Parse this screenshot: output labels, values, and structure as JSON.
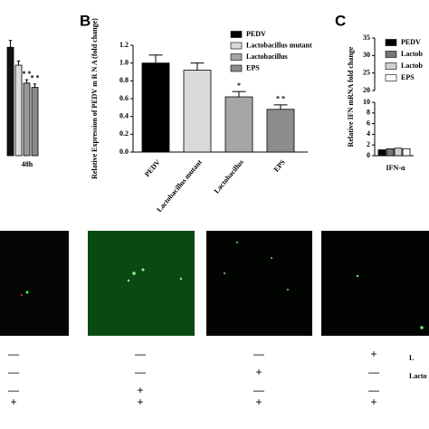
{
  "chart_data": [
    {
      "type": "bar",
      "categories": [
        "48h"
      ],
      "series": [
        {
          "color": "#111111",
          "values": [
            1.27
          ],
          "errors": [
            0.08
          ]
        },
        {
          "color": "#dddddd",
          "values": [
            1.06
          ],
          "errors": [
            0.05
          ]
        },
        {
          "color": "#999999",
          "values": [
            0.85
          ],
          "errors": [
            0.04
          ],
          "annotation": "* *"
        },
        {
          "color": "#888888",
          "values": [
            0.8
          ],
          "errors": [
            0.04
          ],
          "annotation": "* *"
        }
      ],
      "ylim": [
        0,
        1.4
      ]
    },
    {
      "type": "bar",
      "panel_label": "B",
      "ylabel": "Relative Expression of PEDV m R N A (fold change)",
      "categories": [
        "PEDV",
        "Lactobacillus mutant",
        "Lactobacillus",
        "EPS"
      ],
      "values": [
        1.0,
        0.92,
        0.62,
        0.48
      ],
      "errors": [
        0.09,
        0.08,
        0.06,
        0.05
      ],
      "colors": [
        "#000000",
        "#d9d9d9",
        "#a6a6a6",
        "#8c8c8c"
      ],
      "annotations": [
        null,
        null,
        "*",
        "* *"
      ],
      "ylim": [
        0,
        1.2
      ],
      "yticks": [
        {
          "value": 0,
          "label": "0.0"
        },
        {
          "value": 0.2,
          "label": "0.2"
        },
        {
          "value": 0.4,
          "label": "0.4"
        },
        {
          "value": 0.6,
          "label": "0.6"
        },
        {
          "value": 0.8,
          "label": "0.8"
        },
        {
          "value": 1.0,
          "label": "1.0"
        },
        {
          "value": 1.2,
          "label": "1.2"
        }
      ],
      "legend": "top-right"
    },
    {
      "type": "bar",
      "panel_label": "C",
      "ylabel": "Relative IFN mRNA fold change",
      "categories": [
        "IFN-α"
      ],
      "series": [
        {
          "name": "PEDV",
          "color": "#000000",
          "values": [
            1.1
          ]
        },
        {
          "name": "Lactob",
          "color": "#777777",
          "values": [
            1.3
          ]
        },
        {
          "name": "Lactob",
          "color": "#d0d0d0",
          "values": [
            1.4
          ]
        },
        {
          "name": "EPS",
          "color": "#ffffff",
          "values": [
            1.3
          ]
        }
      ],
      "ylim": [
        0,
        10
      ],
      "yticks": [
        0,
        2,
        4,
        6,
        8,
        10
      ],
      "y_upper_lim": [
        20,
        35
      ],
      "y_upper_ticks": [
        20,
        25,
        30,
        35
      ],
      "legend": "top-right"
    }
  ],
  "treatment_table": {
    "rows": [
      {
        "cells": [
          "—",
          "—",
          "—",
          "+"
        ],
        "label": "L"
      },
      {
        "cells": [
          "—",
          "—",
          "+",
          "—"
        ],
        "label": "Lacto"
      },
      {
        "cells": [
          "—",
          "+",
          "—",
          "—"
        ]
      },
      {
        "cells": [
          "+",
          "+",
          "+",
          "+"
        ]
      }
    ]
  }
}
